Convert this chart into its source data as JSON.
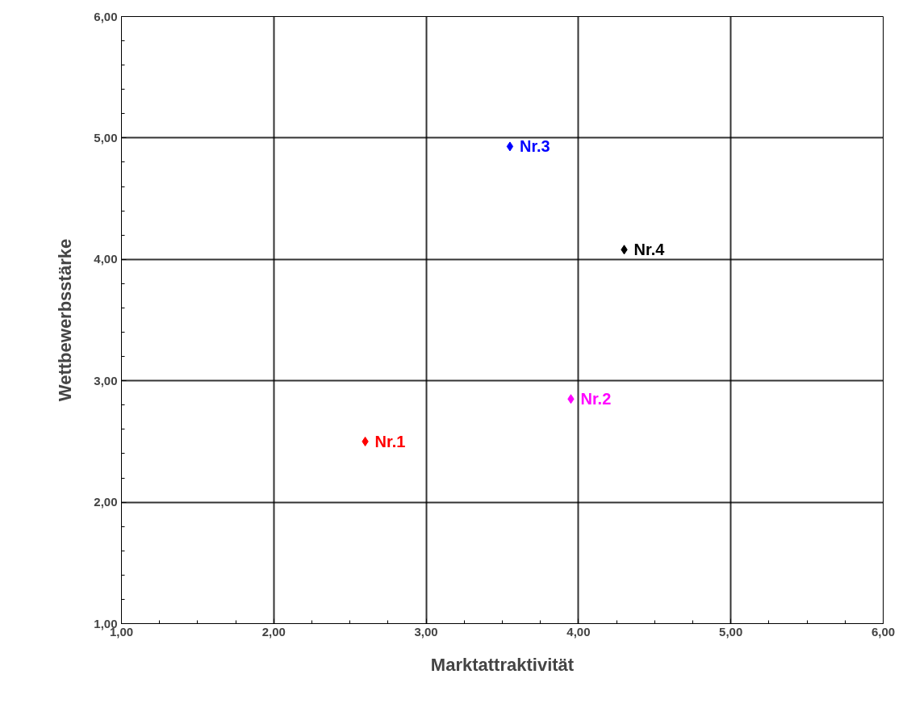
{
  "chart_data": {
    "type": "scatter",
    "xlabel": "Marktattraktivität",
    "ylabel": "Wettbewerbsstärke",
    "xlim": [
      1,
      6
    ],
    "ylim": [
      1,
      6
    ],
    "xticks": [
      {
        "value": 1,
        "label": "1,00"
      },
      {
        "value": 2,
        "label": "2,00"
      },
      {
        "value": 3,
        "label": "3,00"
      },
      {
        "value": 4,
        "label": "4,00"
      },
      {
        "value": 5,
        "label": "5,00"
      },
      {
        "value": 6,
        "label": "6,00"
      }
    ],
    "yticks": [
      {
        "value": 1,
        "label": "1,00"
      },
      {
        "value": 2,
        "label": "2,00"
      },
      {
        "value": 3,
        "label": "3,00"
      },
      {
        "value": 4,
        "label": "4,00"
      },
      {
        "value": 5,
        "label": "5,00"
      },
      {
        "value": 6,
        "label": "6,00"
      }
    ],
    "grid": true,
    "marker": "diamond",
    "series": [
      {
        "name": "Nr.1",
        "color": "#ff0000",
        "x": [
          2.6
        ],
        "values": [
          2.5
        ]
      },
      {
        "name": "Nr.2",
        "color": "#ff00ff",
        "x": [
          3.95
        ],
        "values": [
          2.85
        ]
      },
      {
        "name": "Nr.3",
        "color": "#0000ff",
        "x": [
          3.55
        ],
        "values": [
          4.93
        ]
      },
      {
        "name": "Nr.4",
        "color": "#000000",
        "x": [
          4.3
        ],
        "values": [
          4.08
        ]
      }
    ]
  }
}
